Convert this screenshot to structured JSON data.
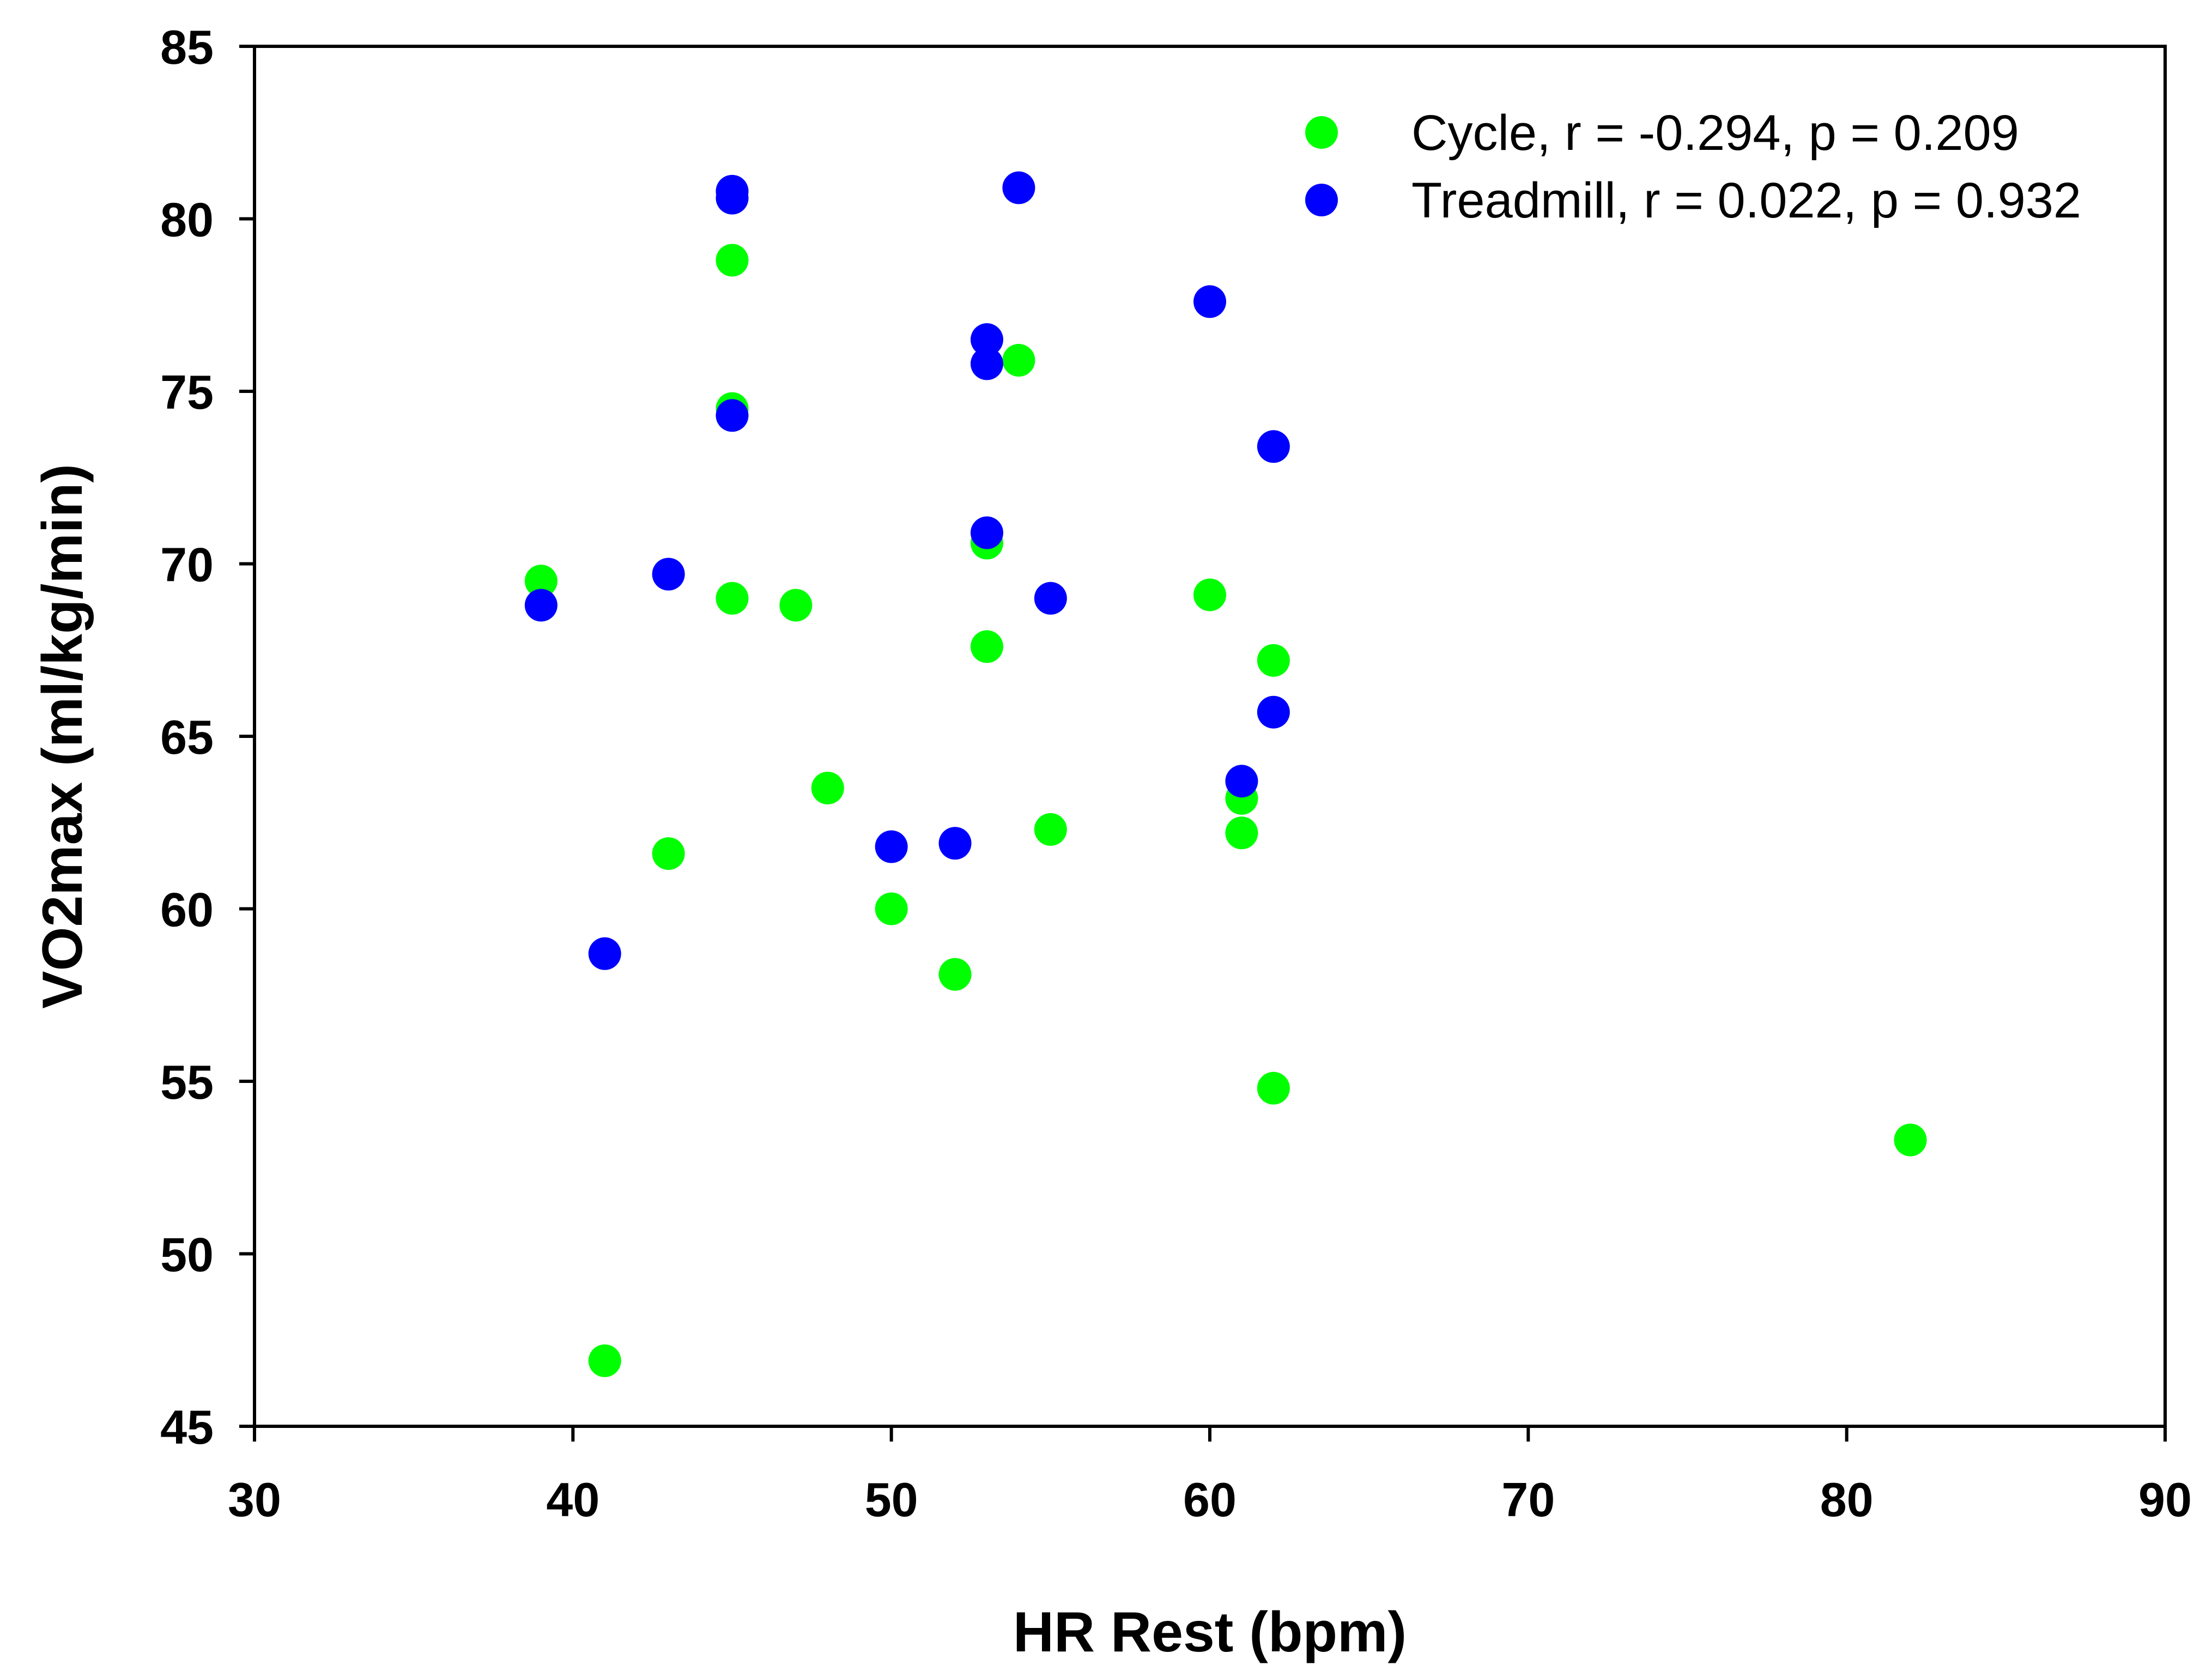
{
  "chart_data": {
    "type": "scatter",
    "title": "",
    "xlabel": "HR Rest (bpm)",
    "ylabel": "VO2max (ml/kg/min)",
    "xlim": [
      30,
      90
    ],
    "ylim": [
      45,
      85
    ],
    "xticks": [
      "30",
      "40",
      "50",
      "60",
      "70",
      "80",
      "90"
    ],
    "yticks": [
      "45",
      "50",
      "55",
      "60",
      "65",
      "70",
      "75",
      "80",
      "85"
    ],
    "grid": false,
    "legend_position": "top-right",
    "series": [
      {
        "name": "Cycle, r = -0.294, p = 0.209",
        "color": "#00ff00",
        "points": [
          [
            39,
            69.5
          ],
          [
            41,
            46.9
          ],
          [
            43,
            61.6
          ],
          [
            45,
            78.8
          ],
          [
            45,
            74.5
          ],
          [
            45,
            69.0
          ],
          [
            47,
            68.8
          ],
          [
            48,
            63.5
          ],
          [
            50,
            60.0
          ],
          [
            52,
            58.1
          ],
          [
            53,
            70.6
          ],
          [
            53,
            67.6
          ],
          [
            54,
            75.9
          ],
          [
            55,
            62.3
          ],
          [
            60,
            69.1
          ],
          [
            61,
            63.2
          ],
          [
            61,
            62.2
          ],
          [
            62,
            67.2
          ],
          [
            62,
            54.8
          ],
          [
            82,
            53.3
          ]
        ]
      },
      {
        "name": "Treadmill, r = 0.022, p = 0.932",
        "color": "#0000ff",
        "points": [
          [
            39,
            68.8
          ],
          [
            41,
            58.7
          ],
          [
            43,
            69.7
          ],
          [
            45,
            80.8
          ],
          [
            45,
            80.6
          ],
          [
            45,
            74.3
          ],
          [
            50,
            61.8
          ],
          [
            52,
            61.9
          ],
          [
            53,
            76.5
          ],
          [
            53,
            75.8
          ],
          [
            53,
            70.9
          ],
          [
            54,
            80.9
          ],
          [
            55,
            69.0
          ],
          [
            60,
            77.6
          ],
          [
            61,
            63.7
          ],
          [
            62,
            73.4
          ],
          [
            62,
            65.7
          ]
        ]
      }
    ]
  }
}
